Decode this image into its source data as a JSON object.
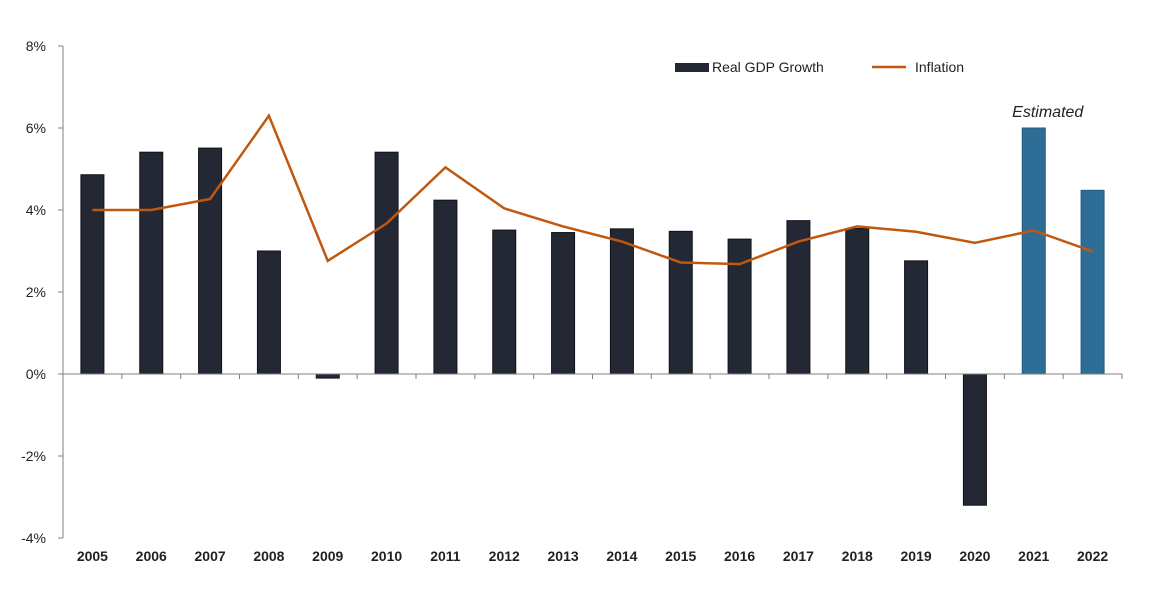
{
  "chart_data": {
    "type": "bar",
    "title": "",
    "xlabel": "",
    "ylabel": "",
    "categories": [
      "2005",
      "2006",
      "2007",
      "2008",
      "2009",
      "2010",
      "2011",
      "2012",
      "2013",
      "2014",
      "2015",
      "2016",
      "2017",
      "2018",
      "2019",
      "2020",
      "2021",
      "2022"
    ],
    "ylim": [
      -4,
      8
    ],
    "yticks": [
      -4,
      -2,
      0,
      2,
      4,
      6,
      8
    ],
    "ytick_labels": [
      "-4%",
      "-2%",
      "0%",
      "2%",
      "4%",
      "6%",
      "8%"
    ],
    "grid": false,
    "legend_position": "top-right",
    "series": [
      {
        "name": "Real GDP Growth",
        "type": "bar",
        "color": "#232834",
        "estimated_color": "#2e6d96",
        "values": [
          4.86,
          5.41,
          5.51,
          3.0,
          -0.1,
          5.41,
          4.24,
          3.51,
          3.45,
          3.54,
          3.48,
          3.29,
          3.74,
          3.55,
          2.76,
          -3.2,
          6.0,
          4.48
        ],
        "estimated": [
          false,
          false,
          false,
          false,
          false,
          false,
          false,
          false,
          false,
          false,
          false,
          false,
          false,
          false,
          false,
          false,
          true,
          true
        ]
      },
      {
        "name": "Inflation",
        "type": "line",
        "color": "#c0580f",
        "values": [
          4.0,
          4.0,
          4.27,
          6.3,
          2.76,
          3.67,
          5.04,
          4.04,
          3.6,
          3.23,
          2.72,
          2.68,
          3.23,
          3.6,
          3.47,
          3.2,
          3.5,
          2.99
        ]
      }
    ],
    "annotations": [
      {
        "text": "Estimated",
        "anchor_category": "2021"
      }
    ]
  }
}
